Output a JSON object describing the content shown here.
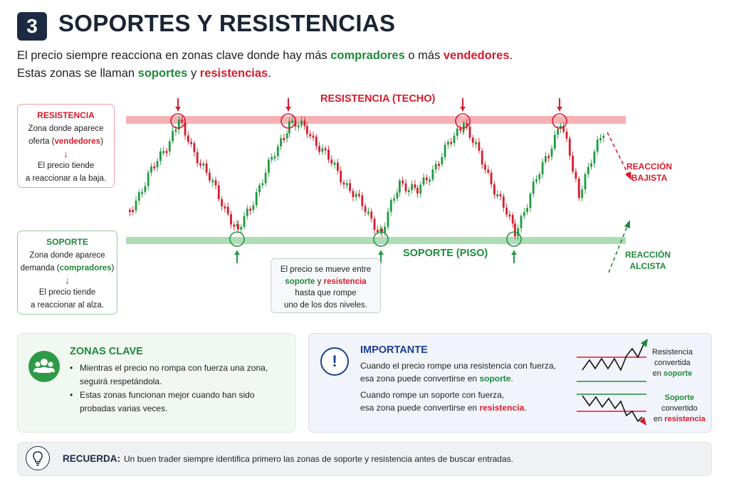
{
  "header": {
    "number": "3",
    "title": "SOPORTES Y RESISTENCIAS"
  },
  "intro": {
    "line1_a": "El precio siempre reacciona en zonas clave donde hay más ",
    "line1_b": "compradores",
    "line1_c": " o más ",
    "line1_d": "vendedores",
    "line1_e": ".",
    "line2_a": "Estas zonas se llaman ",
    "line2_b": "soportes",
    "line2_c": " y ",
    "line2_d": "resistencias",
    "line2_e": "."
  },
  "resistance_box": {
    "heading": "RESISTENCIA",
    "line1": "Zona donde aparece",
    "line2_a": "oferta (",
    "line2_b": "vendedores",
    "line2_c": ")",
    "arrow": "↓",
    "line3": "El precio tiende",
    "line4": "a reaccionar a la baja."
  },
  "support_box": {
    "heading": "SOPORTE",
    "line1": "Zona donde aparece",
    "line2_a": "demanda (",
    "line2_b": "compradores",
    "line2_c": ")",
    "arrow": "↓",
    "line3": "El precio tiende",
    "line4": "a reaccionar al alza."
  },
  "chart": {
    "resistance_label": "RESISTENCIA (TECHO)",
    "support_label": "SOPORTE (PISO)",
    "reaction_down_1": "REACCIÓN",
    "reaction_down_2": "BAJISTA",
    "reaction_up_1": "REACCIÓN",
    "reaction_up_2": "ALCISTA",
    "colors": {
      "resistance_zone": "#f5a3a8",
      "support_zone": "#9fd6a8",
      "bull": "#1f9a3f",
      "bear": "#d81b2c"
    }
  },
  "callout": {
    "line1": "El precio se mueve entre",
    "line2_a": "soporte",
    "line2_b": " y ",
    "line2_c": "resistencia",
    "line3": "hasta que rompe",
    "line4": "uno de los dos niveles."
  },
  "zonas": {
    "title": "ZONAS CLAVE",
    "icon": "users-group-icon",
    "b1_1": "Mientras el precio no rompa con fuerza una zona,",
    "b1_2": "seguirá respetándola.",
    "b2_1": "Estas zonas funcionan mejor cuando han sido",
    "b2_2": "probadas varias veces."
  },
  "importante": {
    "title": "IMPORTANTE",
    "icon_glyph": "!",
    "p1_1": "Cuando el precio rompe una resistencia con fuerza,",
    "p1_2a": "esa zona puede convertirse en ",
    "p1_2b": "soporte",
    "p1_2c": ".",
    "p2_1": "Cuando rompe un soporte con fuerza,",
    "p2_2a": "esa zona puede convertirse en ",
    "p2_2b": "resistencia",
    "p2_2c": ".",
    "mini1_1": "Resistencia",
    "mini1_2": "convertida",
    "mini1_3a": "en ",
    "mini1_3b": "soporte",
    "mini2_1": "Soporte",
    "mini2_2": "convertido",
    "mini2_3a": "en ",
    "mini2_3b": "resistencia"
  },
  "recuerda": {
    "title": "RECUERDA:",
    "text": "Un buen trader siempre identifica primero las zonas de soporte y resistencia antes de buscar entradas.",
    "icon": "lightbulb-icon"
  }
}
